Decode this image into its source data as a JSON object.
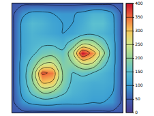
{
  "chart_data": {
    "type": "contour",
    "tick_labels": false,
    "z": [
      [
        40,
        40,
        40,
        40,
        40,
        40,
        40,
        40,
        40,
        40,
        40,
        40
      ],
      [
        40,
        90,
        110,
        110,
        100,
        95,
        95,
        110,
        130,
        130,
        100,
        40
      ],
      [
        40,
        110,
        140,
        130,
        110,
        100,
        100,
        120,
        150,
        150,
        110,
        40
      ],
      [
        40,
        110,
        130,
        120,
        110,
        100,
        110,
        130,
        140,
        130,
        110,
        40
      ],
      [
        40,
        110,
        130,
        140,
        140,
        130,
        170,
        230,
        220,
        170,
        120,
        40
      ],
      [
        40,
        110,
        140,
        170,
        180,
        160,
        230,
        400,
        330,
        220,
        120,
        40
      ],
      [
        40,
        120,
        170,
        230,
        250,
        180,
        200,
        260,
        250,
        170,
        120,
        40
      ],
      [
        40,
        120,
        200,
        360,
        340,
        200,
        150,
        160,
        150,
        130,
        110,
        40
      ],
      [
        40,
        120,
        190,
        300,
        290,
        190,
        140,
        130,
        120,
        120,
        110,
        40
      ],
      [
        40,
        110,
        160,
        200,
        190,
        160,
        130,
        120,
        110,
        110,
        100,
        40
      ],
      [
        40,
        90,
        110,
        120,
        120,
        110,
        110,
        110,
        100,
        100,
        90,
        40
      ],
      [
        40,
        40,
        40,
        40,
        40,
        40,
        40,
        40,
        40,
        40,
        40,
        40
      ]
    ],
    "zlim": [
      0,
      400
    ],
    "zticks": [
      0,
      50,
      100,
      150,
      200,
      250,
      300,
      350,
      400
    ]
  }
}
